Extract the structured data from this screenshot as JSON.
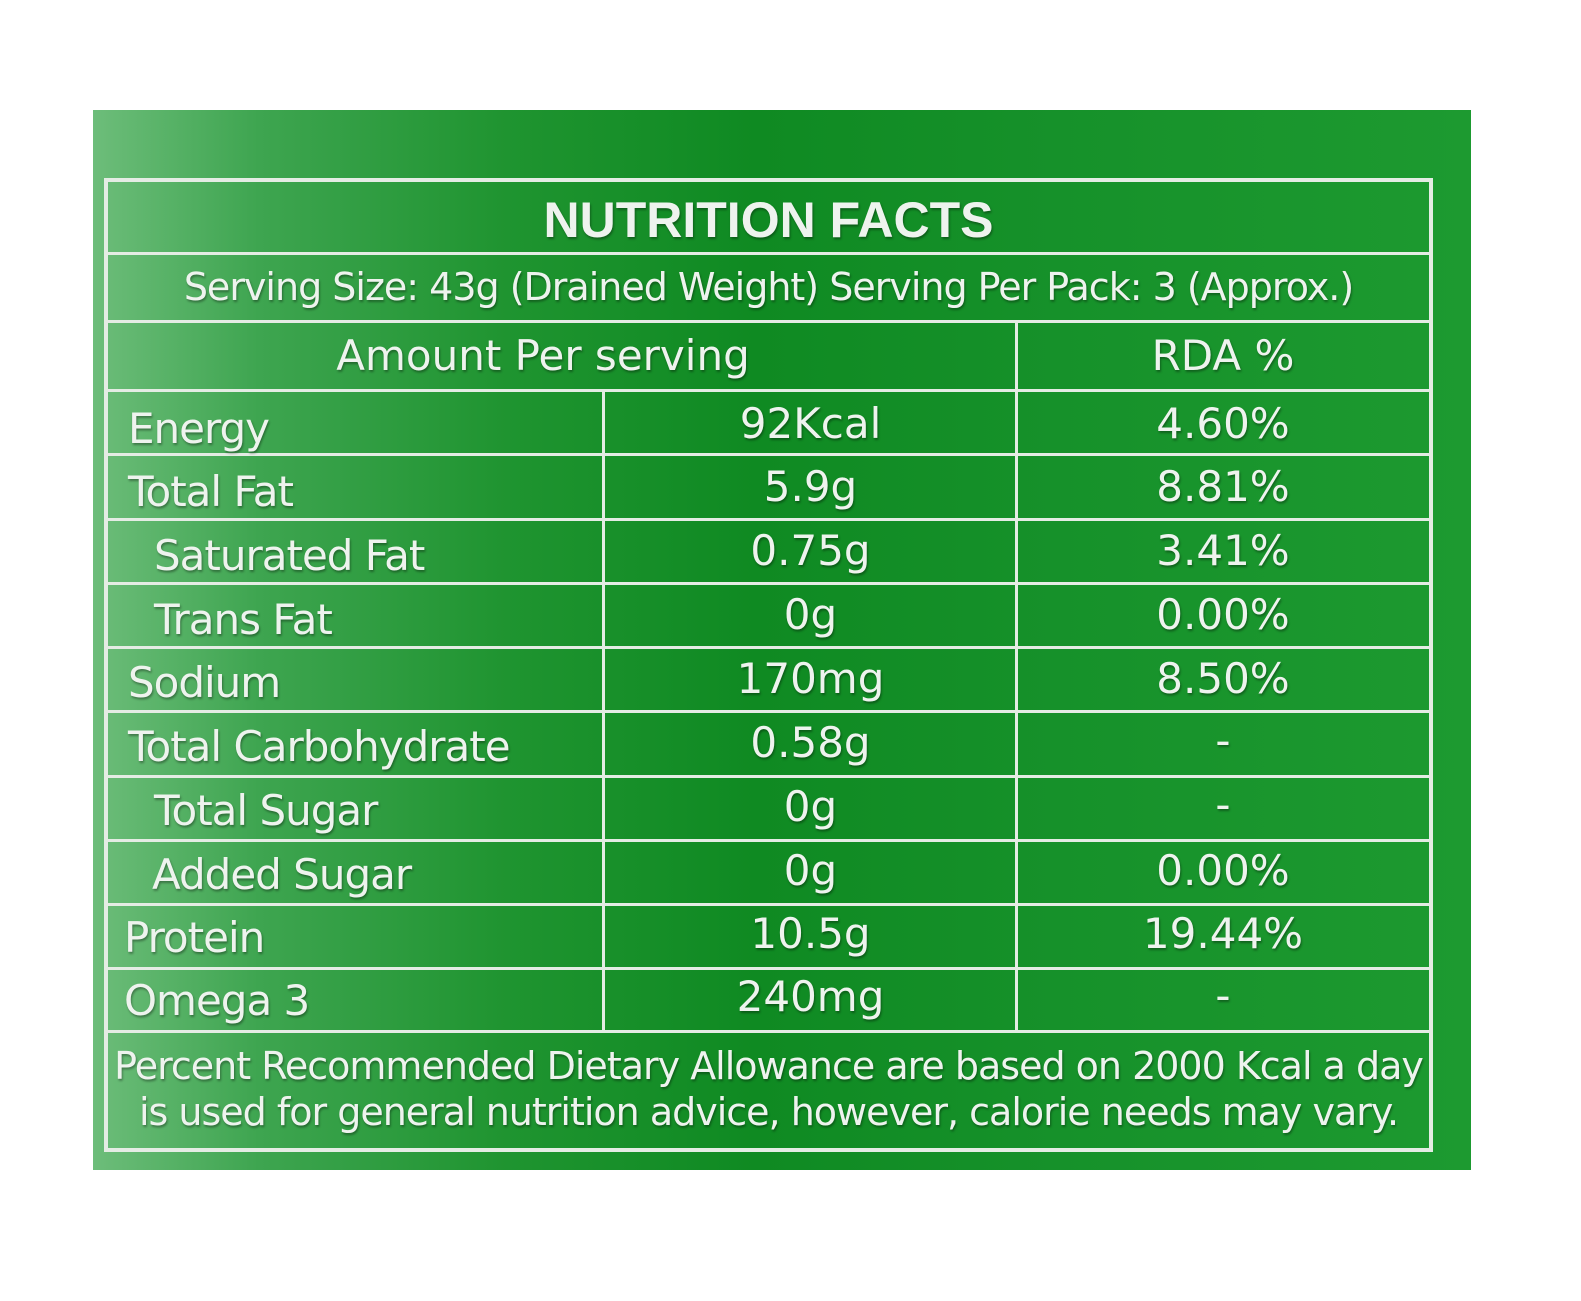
{
  "title": "NUTRITION FACTS",
  "serving": "Serving Size: 43g (Drained Weight) Serving Per Pack: 3 (Approx.)",
  "headers": {
    "amount": "Amount Per serving",
    "rda": "RDA %"
  },
  "rows": [
    {
      "label": "Energy",
      "amount": "92Kcal",
      "rda": "4.60%"
    },
    {
      "label": "Total Fat",
      "amount": "5.9g",
      "rda": "8.81%"
    },
    {
      "label": "Saturated Fat",
      "amount": "0.75g",
      "rda": "3.41%"
    },
    {
      "label": "Trans Fat",
      "amount": "0g",
      "rda": "0.00%"
    },
    {
      "label": "Sodium",
      "amount": "170mg",
      "rda": "8.50%"
    },
    {
      "label": "Total Carbohydrate",
      "amount": "0.58g",
      "rda": "-"
    },
    {
      "label": "Total Sugar",
      "amount": "0g",
      "rda": "-"
    },
    {
      "label": "Added Sugar",
      "amount": "0g",
      "rda": "0.00%"
    },
    {
      "label": "Protein",
      "amount": "10.5g",
      "rda": "19.44%"
    },
    {
      "label": "Omega 3",
      "amount": "240mg",
      "rda": "-"
    }
  ],
  "footnote": {
    "line1": "Percent Recommended Dietary Allowance are based on 2000 Kcal a day",
    "line2": "is used for general nutrition advice, however, calorie needs may vary."
  },
  "colors": {
    "panel_green": "#0f8a22",
    "line": "#e4ece4",
    "text": "#eef3ee"
  }
}
